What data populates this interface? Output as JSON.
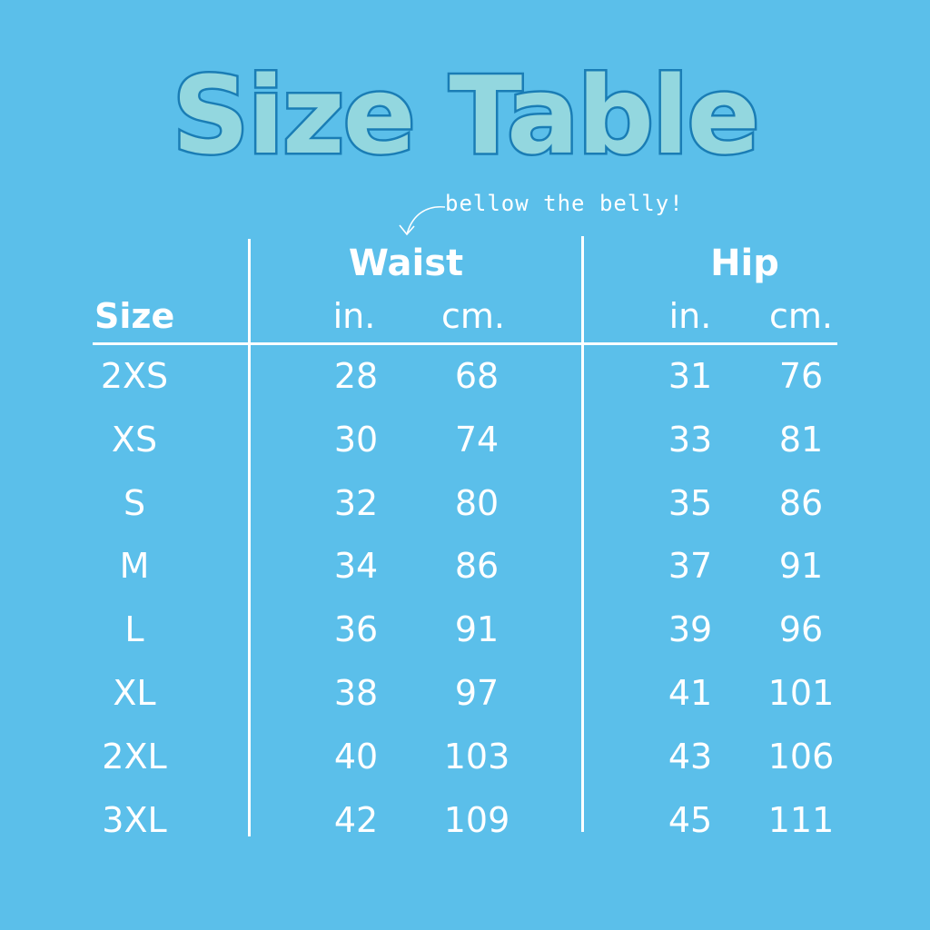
{
  "title": "Size Table",
  "annotation": "bellow the belly!",
  "colors": {
    "background": "#5bbfea",
    "title_fill": "#93d7df",
    "title_stroke": "#1a7db5",
    "text": "#ffffff"
  },
  "headers": {
    "size": "Size",
    "waist": {
      "label": "Waist",
      "in": "in.",
      "cm": "cm."
    },
    "hip": {
      "label": "Hip",
      "in": "in.",
      "cm": "cm."
    }
  },
  "rows": [
    {
      "size": "2XS",
      "waist_in": "28",
      "waist_cm": "68",
      "hip_in": "31",
      "hip_cm": "76"
    },
    {
      "size": "XS",
      "waist_in": "30",
      "waist_cm": "74",
      "hip_in": "33",
      "hip_cm": "81"
    },
    {
      "size": "S",
      "waist_in": "32",
      "waist_cm": "80",
      "hip_in": "35",
      "hip_cm": "86"
    },
    {
      "size": "M",
      "waist_in": "34",
      "waist_cm": "86",
      "hip_in": "37",
      "hip_cm": "91"
    },
    {
      "size": "L",
      "waist_in": "36",
      "waist_cm": "91",
      "hip_in": "39",
      "hip_cm": "96"
    },
    {
      "size": "XL",
      "waist_in": "38",
      "waist_cm": "97",
      "hip_in": "41",
      "hip_cm": "101"
    },
    {
      "size": "2XL",
      "waist_in": "40",
      "waist_cm": "103",
      "hip_in": "43",
      "hip_cm": "106"
    },
    {
      "size": "3XL",
      "waist_in": "42",
      "waist_cm": "109",
      "hip_in": "45",
      "hip_cm": "111"
    }
  ]
}
